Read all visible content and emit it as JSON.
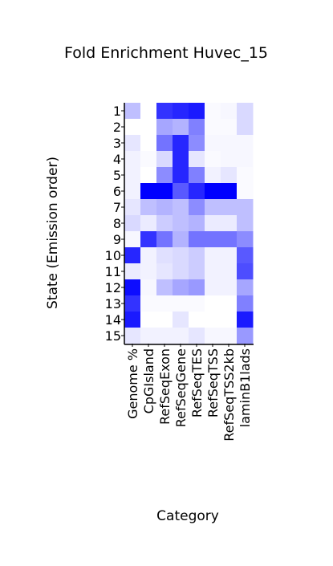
{
  "chart_data": {
    "type": "heatmap",
    "title": "Fold Enrichment Huvec_15",
    "xlabel": "Category",
    "ylabel": "State (Emission order)",
    "rows": [
      "1",
      "2",
      "3",
      "4",
      "5",
      "6",
      "7",
      "8",
      "9",
      "10",
      "11",
      "12",
      "13",
      "14",
      "15"
    ],
    "columns": [
      "Genome %",
      "CpGIsland",
      "RefSeqExon",
      "RefSeqGene",
      "RefSeqTES",
      "RefSeqTSS",
      "RefSeqTSS2kb",
      "laminB1lads"
    ],
    "values": [
      [
        0.25,
        0.0,
        0.8,
        0.85,
        0.9,
        0.02,
        0.03,
        0.15
      ],
      [
        0.0,
        0.0,
        0.35,
        0.3,
        0.5,
        0.02,
        0.02,
        0.15
      ],
      [
        0.1,
        0.0,
        0.55,
        0.85,
        0.45,
        0.03,
        0.03,
        0.03
      ],
      [
        0.05,
        0.02,
        0.15,
        0.85,
        0.1,
        0.02,
        0.03,
        0.03
      ],
      [
        0.05,
        0.0,
        0.45,
        0.85,
        0.5,
        0.05,
        0.1,
        0.02
      ],
      [
        0.05,
        1.0,
        1.0,
        0.65,
        0.85,
        1.0,
        1.0,
        0.02
      ],
      [
        0.1,
        0.25,
        0.3,
        0.25,
        0.45,
        0.25,
        0.25,
        0.25
      ],
      [
        0.15,
        0.08,
        0.2,
        0.25,
        0.3,
        0.08,
        0.08,
        0.25
      ],
      [
        0.03,
        0.8,
        0.55,
        0.3,
        0.55,
        0.55,
        0.55,
        0.45
      ],
      [
        0.85,
        0.05,
        0.12,
        0.15,
        0.2,
        0.05,
        0.05,
        0.65
      ],
      [
        0.08,
        0.05,
        0.1,
        0.15,
        0.2,
        0.05,
        0.05,
        0.7
      ],
      [
        0.95,
        0.03,
        0.25,
        0.35,
        0.4,
        0.05,
        0.05,
        0.35
      ],
      [
        0.8,
        0.02,
        0.02,
        0.02,
        0.02,
        0.0,
        0.0,
        0.5
      ],
      [
        0.9,
        0.0,
        0.0,
        0.1,
        0.0,
        0.0,
        0.0,
        0.9
      ],
      [
        0.1,
        0.05,
        0.05,
        0.05,
        0.1,
        0.03,
        0.03,
        0.4
      ]
    ],
    "color_low": "#ffffff",
    "color_high": "#0000ff"
  }
}
